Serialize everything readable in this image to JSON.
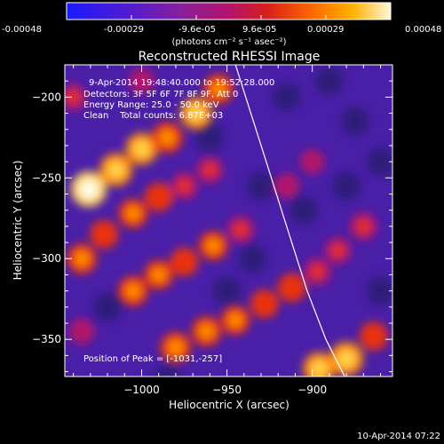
{
  "colorbar": {
    "ticks": [
      "-0.00048",
      "-0.00029",
      "-9.6e-05",
      "9.6e-05",
      "0.00029",
      "0.00048"
    ],
    "units_label": "(photons cm⁻² s⁻¹ asec⁻²)",
    "colors": [
      "#1a1aff",
      "#5b1cc8",
      "#8a1f9a",
      "#b4136b",
      "#d8201c",
      "#ff6a00",
      "#ffb000",
      "#fff7d9"
    ]
  },
  "figure": {
    "title": "Reconstructed RHESSI Image",
    "info_lines": [
      "9-Apr-2014 19:48:40.000 to 19:52:28.000",
      "Detectors: 3F 5F 6F 7F 8F 9F, Att 0",
      "Energy Range: 25.0 - 50.0 keV",
      "Clean    Total counts: 6.87E+03"
    ],
    "peak_label": "Position of Peak = [-1031,-257]",
    "timestamp": "10-Apr-2014 07:22"
  },
  "chart_data": {
    "type": "heatmap",
    "title": "Reconstructed RHESSI Image",
    "xlabel": "Heliocentric X (arcsec)",
    "ylabel": "Heliocentric Y (arcsec)",
    "xlim": [
      -1045,
      -853
    ],
    "ylim": [
      -373,
      -180
    ],
    "x_ticks": [
      -1000,
      -950,
      -900
    ],
    "y_ticks": [
      -200,
      -250,
      -300,
      -350
    ],
    "colorbar_range": [
      -0.00048,
      0.00048
    ],
    "peak_position": [
      -1031,
      -257
    ],
    "limb_curve": {
      "x": [
        -945,
        -927,
        -915,
        -903,
        -892,
        -881
      ],
      "y": [
        -180,
        -240,
        -280,
        -320,
        -350,
        -373
      ]
    },
    "bright_features": [
      {
        "x": -1031,
        "y": -257,
        "level": 1.0
      },
      {
        "x": -1015,
        "y": -245,
        "level": 0.85
      },
      {
        "x": -1000,
        "y": -232,
        "level": 0.8
      },
      {
        "x": -985,
        "y": -225,
        "level": 0.75
      },
      {
        "x": -968,
        "y": -210,
        "level": 0.8
      },
      {
        "x": -955,
        "y": -195,
        "level": 0.7
      },
      {
        "x": -1035,
        "y": -300,
        "level": 0.7
      },
      {
        "x": -1022,
        "y": -285,
        "level": 0.6
      },
      {
        "x": -1005,
        "y": -272,
        "level": 0.65
      },
      {
        "x": -990,
        "y": -262,
        "level": 0.6
      },
      {
        "x": -975,
        "y": -255,
        "level": 0.55
      },
      {
        "x": -960,
        "y": -245,
        "level": 0.5
      },
      {
        "x": -1005,
        "y": -320,
        "level": 0.7
      },
      {
        "x": -990,
        "y": -310,
        "level": 0.65
      },
      {
        "x": -975,
        "y": -302,
        "level": 0.6
      },
      {
        "x": -958,
        "y": -292,
        "level": 0.65
      },
      {
        "x": -942,
        "y": -282,
        "level": 0.55
      },
      {
        "x": -980,
        "y": -355,
        "level": 0.75
      },
      {
        "x": -962,
        "y": -345,
        "level": 0.7
      },
      {
        "x": -945,
        "y": -338,
        "level": 0.65
      },
      {
        "x": -928,
        "y": -328,
        "level": 0.6
      },
      {
        "x": -912,
        "y": -318,
        "level": 0.6
      },
      {
        "x": -897,
        "y": -308,
        "level": 0.55
      },
      {
        "x": -885,
        "y": -295,
        "level": 0.5
      },
      {
        "x": -870,
        "y": -280,
        "level": 0.55
      },
      {
        "x": -880,
        "y": -362,
        "level": 0.9
      },
      {
        "x": -896,
        "y": -368,
        "level": 0.8
      },
      {
        "x": -864,
        "y": -348,
        "level": 0.6
      },
      {
        "x": -1035,
        "y": -345,
        "level": 0.45
      },
      {
        "x": -915,
        "y": -255,
        "level": 0.45
      },
      {
        "x": -900,
        "y": -240,
        "level": 0.4
      },
      {
        "x": -1040,
        "y": -200,
        "level": 0.5
      },
      {
        "x": -1000,
        "y": -190,
        "level": 0.45
      }
    ]
  }
}
